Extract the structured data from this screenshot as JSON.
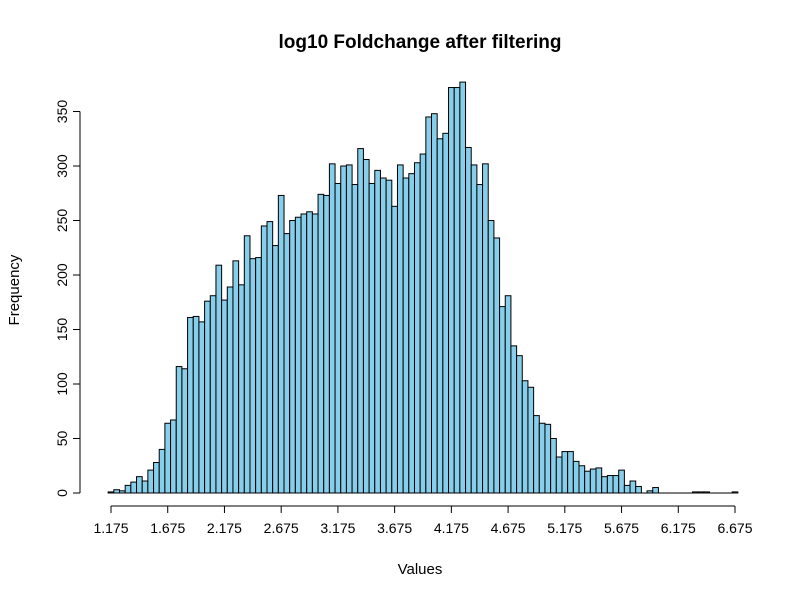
{
  "chart_data": {
    "type": "bar",
    "title": "log10 Foldchange after filtering",
    "xlabel": "Values",
    "ylabel": "Frequency",
    "bin_width": 0.05,
    "x_start": 1.15,
    "xlim": [
      1.175,
      6.675
    ],
    "ylim": [
      0,
      378
    ],
    "x_ticks": [
      1.175,
      1.675,
      2.175,
      2.675,
      3.175,
      3.675,
      4.175,
      4.675,
      5.175,
      5.675,
      6.175,
      6.675
    ],
    "x_tick_labels": [
      "1.175",
      "1.675",
      "2.175",
      "2.675",
      "3.175",
      "3.675",
      "4.175",
      "4.675",
      "5.175",
      "5.675",
      "6.175",
      "6.675"
    ],
    "y_ticks": [
      0,
      50,
      100,
      150,
      200,
      250,
      300,
      350
    ],
    "y_tick_labels": [
      "0",
      "50",
      "100",
      "150",
      "200",
      "250",
      "300",
      "350"
    ],
    "grid": false,
    "legend": "none",
    "values": [
      1,
      3,
      2,
      7,
      10,
      15,
      11,
      21,
      28,
      40,
      64,
      67,
      116,
      114,
      161,
      162,
      157,
      176,
      181,
      209,
      177,
      189,
      213,
      191,
      236,
      215,
      216,
      245,
      249,
      227,
      273,
      238,
      250,
      253,
      256,
      258,
      256,
      274,
      273,
      302,
      284,
      300,
      301,
      283,
      316,
      306,
      284,
      296,
      289,
      287,
      263,
      301,
      289,
      293,
      303,
      311,
      345,
      348,
      325,
      330,
      372,
      372,
      377,
      317,
      301,
      283,
      302,
      250,
      234,
      171,
      181,
      135,
      126,
      103,
      97,
      71,
      64,
      63,
      50,
      33,
      38,
      38,
      29,
      25,
      20,
      22,
      23,
      15,
      16,
      16,
      21,
      7,
      11,
      6,
      0,
      2,
      5,
      0,
      0,
      0,
      0,
      0,
      0,
      1,
      1,
      1,
      0,
      0,
      0,
      0,
      1
    ],
    "colors": {
      "bar_fill": "#87CEEB",
      "bar_stroke": "#000000"
    }
  }
}
